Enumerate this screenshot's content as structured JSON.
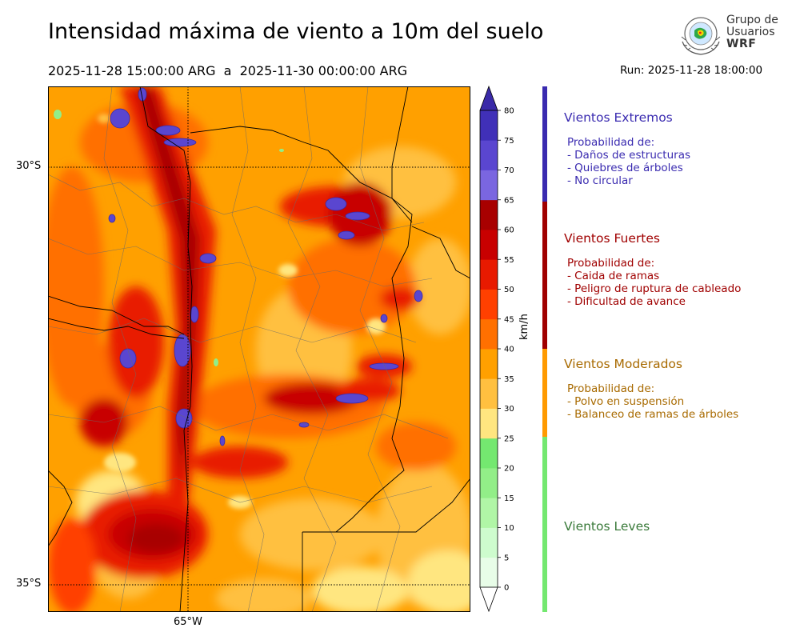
{
  "title": "Intensidad máxima de viento a 10m del suelo",
  "period": "2025-11-28 15:00:00 ARG  a  2025-11-30 00:00:00 ARG",
  "run": "Run: 2025-11-28 18:00:00",
  "logo": {
    "line1": "Grupo de",
    "line2": "Usuarios",
    "line3": "WRF"
  },
  "map": {
    "lat_labels": [
      "30°S",
      "35°S"
    ],
    "lon_labels": [
      "65°W"
    ]
  },
  "colorbar": {
    "unit": "km/h",
    "ticks": [
      "0",
      "5",
      "10",
      "15",
      "20",
      "25",
      "30",
      "35",
      "40",
      "45",
      "50",
      "55",
      "60",
      "65",
      "70",
      "75",
      "80"
    ],
    "colors": [
      "#e8fde8",
      "#cefcce",
      "#b0f6a6",
      "#92ee88",
      "#74e870",
      "#ffe680",
      "#ffc040",
      "#ffa000",
      "#ff7000",
      "#ff4000",
      "#e81a00",
      "#c80000",
      "#a80000",
      "#7a66e0",
      "#5a46d0",
      "#4030b8"
    ],
    "over_color": "#3a2aa8",
    "under_color": "#ffffff"
  },
  "categories": [
    {
      "name": "Vientos Extremos",
      "color": "#3a2bb0",
      "lines": [
        "Probabilidad de:",
        "- Daños de estructuras",
        "- Quiebres de árboles",
        "- No circular"
      ]
    },
    {
      "name": "Vientos Fuertes",
      "color": "#a00000",
      "lines": [
        "Probabilidad de:",
        "- Caida de ramas",
        "- Peligro de ruptura de cableado",
        "- Dificultad de avance"
      ]
    },
    {
      "name": "Vientos Moderados",
      "color": "#a86a00",
      "lines": [
        "Probabilidad de:",
        "- Polvo en suspensión",
        "- Balanceo de ramas de árboles"
      ]
    },
    {
      "name": "Vientos Leves",
      "color": "#3a7a3a",
      "lines": []
    }
  ]
}
